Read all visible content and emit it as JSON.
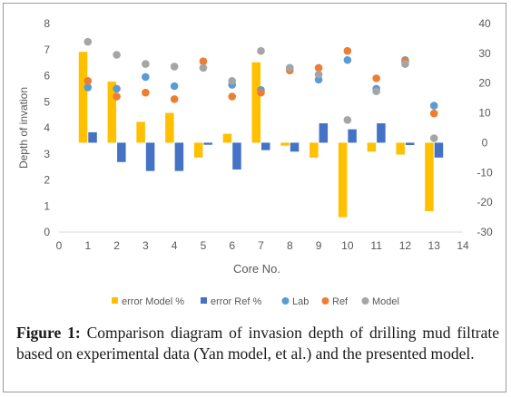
{
  "chart_data": {
    "type": "bar",
    "xlabel": "Core No.",
    "ylabel_left": "Depth of invation",
    "x_range": [
      0,
      14
    ],
    "x_ticks": [
      "0",
      "1",
      "2",
      "3",
      "4",
      "5",
      "6",
      "7",
      "8",
      "9",
      "10",
      "11",
      "12",
      "13",
      "14"
    ],
    "y_left_range": [
      0,
      8
    ],
    "y_left_ticks": [
      "0",
      "1",
      "2",
      "3",
      "4",
      "5",
      "6",
      "7",
      "8"
    ],
    "y_right_range": [
      -30,
      40
    ],
    "y_right_ticks": [
      "-30",
      "-20",
      "-10",
      "0",
      "10",
      "20",
      "30",
      "40"
    ],
    "grid": false,
    "legend_position": "bottom",
    "cores": [
      1,
      2,
      3,
      4,
      5,
      6,
      7,
      8,
      9,
      10,
      11,
      12,
      13
    ],
    "series": [
      {
        "name": "error Model %",
        "type": "bar",
        "axis": "right",
        "color": "#FFC000",
        "values": [
          30.5,
          20.5,
          7,
          10,
          -5,
          3,
          27,
          -1,
          -5,
          -25,
          -3,
          -4,
          -23
        ]
      },
      {
        "name": "error Ref %",
        "type": "bar",
        "axis": "right",
        "color": "#4472C4",
        "values": [
          3.5,
          -6.5,
          -9.5,
          -9.5,
          -0.7,
          -9,
          -2.5,
          -3,
          6.5,
          4.5,
          6.5,
          -0.8,
          -5
        ]
      },
      {
        "name": "Lab",
        "type": "scatter",
        "axis": "left",
        "color": "#5B9BD5",
        "values": [
          5.55,
          5.5,
          5.95,
          5.6,
          null,
          5.65,
          5.45,
          6.3,
          5.85,
          6.6,
          5.5,
          6.6,
          4.85
        ]
      },
      {
        "name": "Ref",
        "type": "scatter",
        "axis": "left",
        "color": "#ED7D31",
        "values": [
          5.8,
          5.2,
          5.35,
          5.1,
          6.55,
          5.2,
          5.35,
          6.2,
          6.3,
          6.95,
          5.9,
          6.55,
          4.55
        ]
      },
      {
        "name": "Model",
        "type": "scatter",
        "axis": "left",
        "color": "#A5A5A5",
        "values": [
          7.3,
          6.8,
          6.45,
          6.35,
          6.3,
          5.8,
          6.95,
          6.3,
          6.05,
          4.3,
          5.4,
          6.45,
          3.6
        ]
      }
    ]
  },
  "caption": {
    "label": "Figure 1:",
    "text": " Comparison diagram of invasion depth of drilling mud filtrate based on experimental data (Yan model, et al.) and the presented model."
  }
}
